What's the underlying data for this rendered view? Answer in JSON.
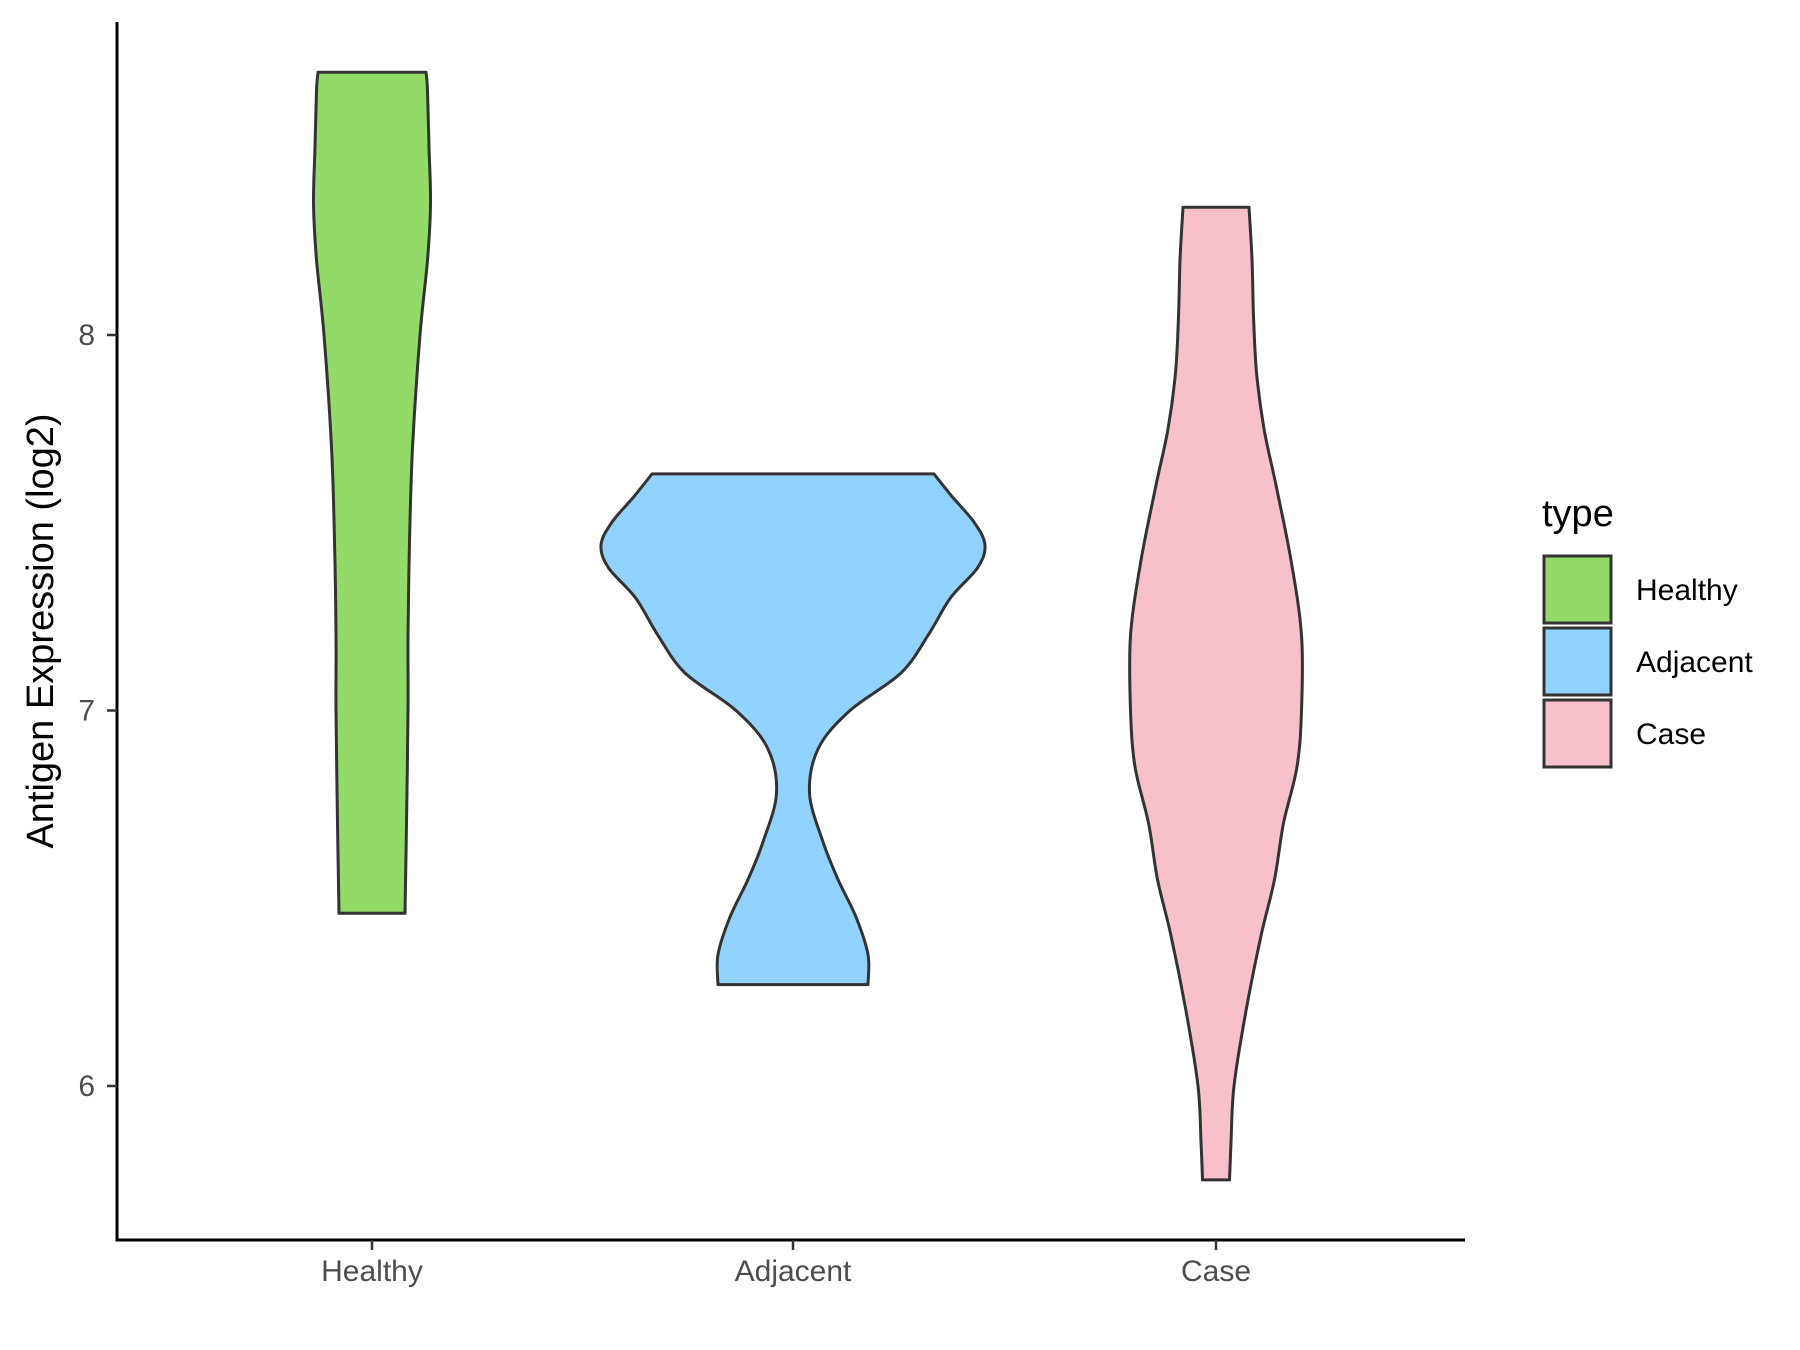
{
  "chart_data": {
    "type": "violin",
    "title": "",
    "xlabel": "",
    "ylabel": "Antigen Expression (log2)",
    "ylim": [
      5.6,
      8.85
    ],
    "y_ticks": [
      6,
      7,
      8
    ],
    "x_ticks": [
      "Healthy",
      "Adjacent",
      "Case"
    ],
    "grid": false,
    "legend": {
      "title": "type",
      "position": "right",
      "entries": [
        "Healthy",
        "Adjacent",
        "Case"
      ]
    },
    "series": [
      {
        "name": "Healthy",
        "color": "#93DB69",
        "min": 6.46,
        "max": 8.7,
        "density": [
          [
            6.46,
            0.22
          ],
          [
            6.7,
            0.23
          ],
          [
            7.0,
            0.24
          ],
          [
            7.2,
            0.24
          ],
          [
            7.45,
            0.25
          ],
          [
            7.7,
            0.27
          ],
          [
            8.0,
            0.32
          ],
          [
            8.2,
            0.37
          ],
          [
            8.35,
            0.39
          ],
          [
            8.5,
            0.38
          ],
          [
            8.65,
            0.37
          ],
          [
            8.7,
            0.36
          ]
        ]
      },
      {
        "name": "Adjacent",
        "color": "#92D2FE",
        "min": 6.27,
        "max": 7.63,
        "density": [
          [
            6.27,
            0.5
          ],
          [
            6.35,
            0.5
          ],
          [
            6.45,
            0.42
          ],
          [
            6.55,
            0.3
          ],
          [
            6.65,
            0.2
          ],
          [
            6.78,
            0.11
          ],
          [
            6.9,
            0.17
          ],
          [
            7.0,
            0.38
          ],
          [
            7.1,
            0.72
          ],
          [
            7.2,
            0.9
          ],
          [
            7.3,
            1.05
          ],
          [
            7.38,
            1.23
          ],
          [
            7.44,
            1.28
          ],
          [
            7.5,
            1.21
          ],
          [
            7.57,
            1.06
          ],
          [
            7.63,
            0.94
          ]
        ]
      },
      {
        "name": "Case",
        "color": "#F7C0CB",
        "min": 5.75,
        "max": 8.34,
        "density": [
          [
            5.75,
            0.09
          ],
          [
            5.85,
            0.1
          ],
          [
            6.0,
            0.12
          ],
          [
            6.2,
            0.2
          ],
          [
            6.4,
            0.3
          ],
          [
            6.55,
            0.39
          ],
          [
            6.7,
            0.45
          ],
          [
            6.85,
            0.54
          ],
          [
            7.0,
            0.57
          ],
          [
            7.2,
            0.57
          ],
          [
            7.4,
            0.5
          ],
          [
            7.6,
            0.4
          ],
          [
            7.75,
            0.32
          ],
          [
            7.9,
            0.27
          ],
          [
            8.05,
            0.25
          ],
          [
            8.2,
            0.24
          ],
          [
            8.34,
            0.22
          ]
        ]
      }
    ]
  }
}
